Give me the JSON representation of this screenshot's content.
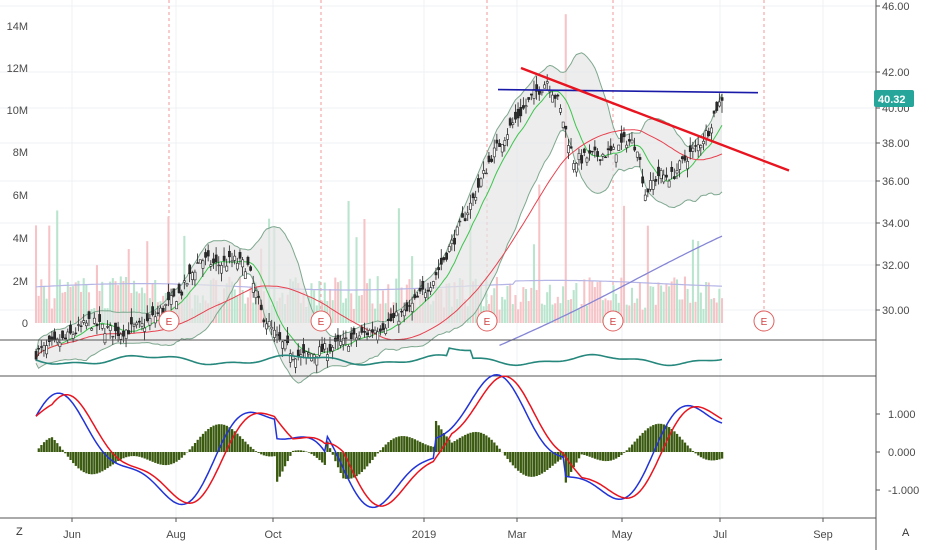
{
  "chart_data": [
    {
      "type": "candlestick",
      "title": "",
      "x_ticks": [
        "Jun",
        "Aug",
        "Oct",
        "2019",
        "Mar",
        "May",
        "Jul",
        "Sep"
      ],
      "price_axis": {
        "ticks": [
          "46.00",
          "42.00",
          "40.00",
          "38.00",
          "36.00",
          "34.00",
          "32.00",
          "30.00"
        ]
      },
      "volume_axis": {
        "ticks": [
          "14M",
          "12M",
          "10M",
          "8M",
          "6M",
          "4M",
          "2M",
          "0"
        ]
      },
      "last_price": "40.32",
      "earnings_marker": "E",
      "colors": {
        "up": "#53b987",
        "down": "#eb4d5c",
        "trend": "#e8141f",
        "resistance": "#1a1aa8",
        "bb_fill": "#e6e6e6",
        "ma_red": "#e8414f",
        "ma_green": "#3cc54e",
        "ma_purple": "#8585d6",
        "price_label": "#26a69a"
      }
    },
    {
      "type": "line",
      "indicator": "oscillator",
      "color": "#26877c"
    },
    {
      "type": "bar",
      "indicator": "macd",
      "y_ticks": [
        "1.000",
        "0.000",
        "-1.000"
      ],
      "colors": {
        "macd": "#2133d6",
        "signal": "#e8141f",
        "histogram": "#3a5a10"
      }
    }
  ],
  "corner_labels": {
    "left": "Z",
    "right": "A"
  }
}
